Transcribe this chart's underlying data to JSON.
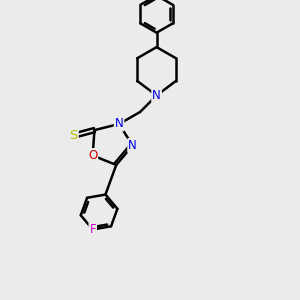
{
  "background_color": "#ebebeb",
  "line_color": "#000000",
  "bond_width": 1.8,
  "atom_colors": {
    "N": "#0000ee",
    "O": "#dd0000",
    "S": "#bbbb00",
    "F": "#cc00cc",
    "C": "#000000"
  },
  "font_size": 8.5,
  "fig_size": [
    3.0,
    3.0
  ],
  "dpi": 100,
  "xlim": [
    0,
    10
  ],
  "ylim": [
    0,
    10
  ]
}
